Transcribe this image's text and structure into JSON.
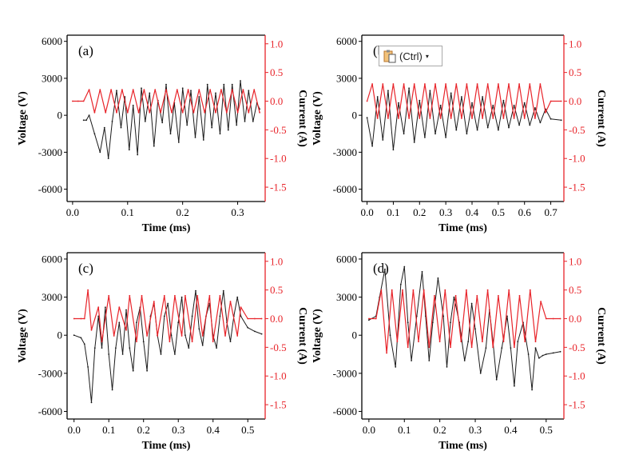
{
  "colors": {
    "voltage": "#1a1a1a",
    "current": "#e8242a",
    "axis_right": "#e8242a",
    "axis_left": "#000000"
  },
  "paste_options": {
    "label": "(Ctrl)",
    "icon": "clipboard-icon",
    "caret": "▾"
  },
  "chart_data": [
    {
      "type": "line",
      "panel_label": "(a)",
      "xlabel": "Time (ms)",
      "ylabel_left": "Voltage (V)",
      "ylabel_right": "Current (A)",
      "xlim": [
        -0.01,
        0.35
      ],
      "xticks": [
        0.0,
        0.1,
        0.2,
        0.3
      ],
      "xtick_labels": [
        "0.0",
        "0.1",
        "0.2",
        "0.3"
      ],
      "ylim_left": [
        -7000,
        6500
      ],
      "yticks_left": [
        -6000,
        -3000,
        0,
        3000,
        6000
      ],
      "ytick_labels_left": [
        "-6000",
        "-3000",
        "0",
        "3000",
        "6000"
      ],
      "ylim_right": [
        -1.75,
        1.15
      ],
      "yticks_right": [
        -1.5,
        -1.0,
        -0.5,
        0.0,
        0.5,
        1.0
      ],
      "ytick_labels_right": [
        "-1.5",
        "-1.0",
        "-0.5",
        "0.0",
        "0.5",
        "1.0"
      ],
      "series": [
        {
          "name": "Voltage (V)",
          "axis": "left",
          "x": [
            0.02,
            0.025,
            0.03,
            0.04,
            0.05,
            0.058,
            0.065,
            0.072,
            0.08,
            0.088,
            0.095,
            0.103,
            0.11,
            0.118,
            0.125,
            0.132,
            0.14,
            0.148,
            0.155,
            0.163,
            0.17,
            0.178,
            0.185,
            0.193,
            0.2,
            0.208,
            0.215,
            0.223,
            0.23,
            0.238,
            0.245,
            0.253,
            0.26,
            0.268,
            0.275,
            0.283,
            0.29,
            0.298,
            0.305,
            0.313,
            0.32,
            0.328,
            0.335,
            0.34
          ],
          "values": [
            -400,
            -400,
            0,
            -1500,
            -3000,
            -1000,
            -3500,
            -500,
            2000,
            -1000,
            1500,
            -2800,
            800,
            -3200,
            2200,
            -500,
            1800,
            -2500,
            1200,
            -600,
            2500,
            -1500,
            1000,
            -2200,
            2200,
            -800,
            2000,
            -1800,
            1500,
            -2000,
            2500,
            -1000,
            1800,
            -1500,
            2500,
            -1200,
            2500,
            -800,
            2800,
            -500,
            2000,
            -500,
            1000,
            500
          ]
        },
        {
          "name": "Current (A)",
          "axis": "right",
          "x": [
            0.0,
            0.01,
            0.02,
            0.03,
            0.04,
            0.05,
            0.06,
            0.07,
            0.08,
            0.09,
            0.1,
            0.11,
            0.12,
            0.13,
            0.14,
            0.15,
            0.16,
            0.17,
            0.18,
            0.19,
            0.2,
            0.21,
            0.22,
            0.23,
            0.24,
            0.25,
            0.26,
            0.27,
            0.28,
            0.29,
            0.3,
            0.31,
            0.32,
            0.33,
            0.34
          ],
          "values": [
            0.0,
            0.0,
            0.0,
            0.2,
            -0.2,
            0.2,
            -0.2,
            0.2,
            -0.2,
            0.2,
            -0.2,
            0.2,
            -0.2,
            0.2,
            -0.2,
            0.2,
            -0.2,
            0.2,
            -0.2,
            0.2,
            -0.2,
            0.2,
            -0.2,
            0.2,
            -0.2,
            0.2,
            -0.2,
            0.2,
            -0.2,
            0.2,
            -0.2,
            0.2,
            -0.2,
            0.2,
            -0.2
          ]
        }
      ]
    },
    {
      "type": "line",
      "panel_label": "(b)",
      "xlabel": "Time (ms)",
      "ylabel_left": "Voltage (V)",
      "ylabel_right": "Current (A)",
      "xlim": [
        -0.02,
        0.75
      ],
      "xticks": [
        0.0,
        0.1,
        0.2,
        0.3,
        0.4,
        0.5,
        0.6,
        0.7
      ],
      "xtick_labels": [
        "0.0",
        "0.1",
        "0.2",
        "0.3",
        "0.4",
        "0.5",
        "0.6",
        "0.7"
      ],
      "ylim_left": [
        -7000,
        6500
      ],
      "yticks_left": [
        -6000,
        -3000,
        0,
        3000,
        6000
      ],
      "ytick_labels_left": [
        "-6000",
        "-3000",
        "0",
        "3000",
        "6000"
      ],
      "ylim_right": [
        -1.75,
        1.15
      ],
      "yticks_right": [
        -1.5,
        -1.0,
        -0.5,
        0.0,
        0.5,
        1.0
      ],
      "ytick_labels_right": [
        "-1.5",
        "-1.0",
        "-0.5",
        "0.0",
        "0.5",
        "1.0"
      ],
      "series": [
        {
          "name": "Voltage (V)",
          "axis": "left",
          "x": [
            0.0,
            0.02,
            0.04,
            0.06,
            0.08,
            0.1,
            0.12,
            0.14,
            0.16,
            0.18,
            0.2,
            0.22,
            0.24,
            0.26,
            0.28,
            0.3,
            0.32,
            0.34,
            0.36,
            0.38,
            0.4,
            0.42,
            0.44,
            0.46,
            0.48,
            0.5,
            0.52,
            0.54,
            0.56,
            0.58,
            0.6,
            0.62,
            0.64,
            0.66,
            0.68,
            0.7,
            0.74
          ],
          "values": [
            -200,
            -2500,
            1500,
            -2000,
            2000,
            -2800,
            1000,
            -1500,
            2200,
            -2200,
            1200,
            -1800,
            2000,
            -1500,
            800,
            -1800,
            1800,
            -1200,
            1500,
            -1500,
            1000,
            -1200,
            1500,
            -1000,
            800,
            -1200,
            1200,
            -1000,
            800,
            -800,
            1000,
            -800,
            600,
            -600,
            500,
            -300,
            -400
          ]
        },
        {
          "name": "Current (A)",
          "axis": "right",
          "x": [
            0.0,
            0.02,
            0.04,
            0.06,
            0.08,
            0.1,
            0.12,
            0.14,
            0.16,
            0.18,
            0.2,
            0.22,
            0.24,
            0.26,
            0.28,
            0.3,
            0.32,
            0.34,
            0.36,
            0.38,
            0.4,
            0.42,
            0.44,
            0.46,
            0.48,
            0.5,
            0.52,
            0.54,
            0.56,
            0.58,
            0.6,
            0.62,
            0.64,
            0.66,
            0.68,
            0.7,
            0.74
          ],
          "values": [
            0.0,
            0.3,
            -0.3,
            0.3,
            -0.3,
            0.3,
            -0.3,
            0.3,
            -0.3,
            0.3,
            -0.3,
            0.3,
            -0.3,
            0.3,
            -0.3,
            0.3,
            -0.3,
            0.3,
            -0.3,
            0.3,
            -0.3,
            0.3,
            -0.3,
            0.3,
            -0.3,
            0.3,
            -0.3,
            0.3,
            -0.3,
            0.3,
            -0.3,
            0.3,
            -0.3,
            0.3,
            -0.2,
            0.0,
            0.0
          ]
        }
      ]
    },
    {
      "type": "line",
      "panel_label": "(c)",
      "xlabel": "Time (ms)",
      "ylabel_left": "Voltage (V)",
      "ylabel_right": "Current (A)",
      "xlim": [
        -0.02,
        0.55
      ],
      "xticks": [
        0.0,
        0.1,
        0.2,
        0.3,
        0.4,
        0.5
      ],
      "xtick_labels": [
        "0.0",
        "0.1",
        "0.2",
        "0.3",
        "0.4",
        "0.5"
      ],
      "ylim_left": [
        -6600,
        6500
      ],
      "yticks_left": [
        -6000,
        -3000,
        0,
        3000,
        6000
      ],
      "ytick_labels_left": [
        "-6000",
        "-3000",
        "0",
        "3000",
        "6000"
      ],
      "ylim_right": [
        -1.75,
        1.15
      ],
      "yticks_right": [
        -1.5,
        -1.0,
        -0.5,
        0.0,
        0.5,
        1.0
      ],
      "ytick_labels_right": [
        "-1.5",
        "-1.0",
        "-0.5",
        "0.0",
        "0.5",
        "1.0"
      ],
      "series": [
        {
          "name": "Voltage (V)",
          "axis": "left",
          "x": [
            0.0,
            0.02,
            0.03,
            0.04,
            0.05,
            0.06,
            0.07,
            0.08,
            0.09,
            0.1,
            0.11,
            0.12,
            0.13,
            0.14,
            0.15,
            0.16,
            0.17,
            0.18,
            0.19,
            0.2,
            0.21,
            0.22,
            0.23,
            0.24,
            0.25,
            0.26,
            0.27,
            0.28,
            0.29,
            0.3,
            0.31,
            0.32,
            0.33,
            0.34,
            0.35,
            0.36,
            0.37,
            0.38,
            0.39,
            0.4,
            0.41,
            0.42,
            0.43,
            0.44,
            0.45,
            0.46,
            0.47,
            0.48,
            0.5,
            0.52,
            0.54
          ],
          "values": [
            0,
            -200,
            -700,
            -2500,
            -5300,
            -1000,
            1500,
            -1000,
            2200,
            -1500,
            -4300,
            -1000,
            1000,
            -1500,
            2000,
            -1000,
            -2800,
            1000,
            2200,
            -500,
            -2800,
            1500,
            2500,
            0,
            -1500,
            1500,
            2500,
            0,
            -1500,
            1000,
            3000,
            0,
            -1000,
            1500,
            3500,
            500,
            -800,
            1500,
            2500,
            0,
            -1000,
            1500,
            3500,
            1000,
            -500,
            1500,
            3000,
            1500,
            600,
            300,
            100
          ]
        },
        {
          "name": "Current (A)",
          "axis": "right",
          "x": [
            0.0,
            0.02,
            0.03,
            0.04,
            0.05,
            0.07,
            0.08,
            0.1,
            0.115,
            0.13,
            0.15,
            0.16,
            0.18,
            0.195,
            0.21,
            0.23,
            0.24,
            0.26,
            0.275,
            0.29,
            0.31,
            0.32,
            0.34,
            0.355,
            0.37,
            0.39,
            0.4,
            0.42,
            0.435,
            0.45,
            0.47,
            0.48,
            0.5,
            0.52,
            0.54
          ],
          "values": [
            0.0,
            0.0,
            0.0,
            0.5,
            -0.2,
            0.2,
            -0.4,
            0.4,
            -0.3,
            0.2,
            -0.2,
            0.4,
            -0.4,
            0.4,
            -0.3,
            0.3,
            -0.3,
            0.4,
            -0.4,
            0.4,
            -0.3,
            0.4,
            -0.4,
            0.4,
            -0.3,
            0.4,
            -0.4,
            0.4,
            -0.3,
            0.3,
            -0.3,
            0.2,
            0.0,
            0.0,
            0.0
          ]
        }
      ]
    },
    {
      "type": "line",
      "panel_label": "(d)",
      "xlabel": "Time (ms)",
      "ylabel_left": "Voltage (V)",
      "ylabel_right": "Current (A)",
      "xlim": [
        -0.02,
        0.55
      ],
      "xticks": [
        0.0,
        0.1,
        0.2,
        0.3,
        0.4,
        0.5
      ],
      "xtick_labels": [
        "0.0",
        "0.1",
        "0.2",
        "0.3",
        "0.4",
        "0.5"
      ],
      "ylim_left": [
        -6600,
        6500
      ],
      "yticks_left": [
        -6000,
        -3000,
        0,
        3000,
        6000
      ],
      "ytick_labels_left": [
        "-6000",
        "-3000",
        "0",
        "3000",
        "6000"
      ],
      "ylim_right": [
        -1.75,
        1.15
      ],
      "yticks_right": [
        -1.5,
        -1.0,
        -0.5,
        0.0,
        0.5,
        1.0
      ],
      "ytick_labels_right": [
        "-1.5",
        "-1.0",
        "-0.5",
        "0.0",
        "0.5",
        "1.0"
      ],
      "series": [
        {
          "name": "Voltage (V)",
          "axis": "left",
          "x": [
            0.0,
            0.02,
            0.03,
            0.045,
            0.06,
            0.075,
            0.09,
            0.1,
            0.11,
            0.12,
            0.135,
            0.15,
            0.16,
            0.17,
            0.18,
            0.195,
            0.21,
            0.22,
            0.23,
            0.24,
            0.255,
            0.27,
            0.28,
            0.29,
            0.3,
            0.315,
            0.33,
            0.34,
            0.35,
            0.36,
            0.375,
            0.39,
            0.4,
            0.41,
            0.42,
            0.435,
            0.45,
            0.46,
            0.47,
            0.48,
            0.49,
            0.5,
            0.52,
            0.54
          ],
          "values": [
            1200,
            1500,
            3000,
            5200,
            0,
            -2500,
            4000,
            5400,
            1000,
            -2000,
            1500,
            5000,
            1500,
            -2000,
            1000,
            4500,
            1500,
            -2500,
            1000,
            3000,
            1000,
            -2000,
            -500,
            2500,
            500,
            -3000,
            -1000,
            2000,
            -500,
            -3500,
            -1000,
            1500,
            -1000,
            -4000,
            -500,
            1000,
            -1500,
            -4300,
            -1000,
            -1800,
            -1600,
            -1500,
            -1400,
            -1300
          ]
        },
        {
          "name": "Current (A)",
          "axis": "right",
          "x": [
            0.0,
            0.02,
            0.035,
            0.05,
            0.065,
            0.08,
            0.095,
            0.11,
            0.125,
            0.14,
            0.155,
            0.17,
            0.185,
            0.2,
            0.215,
            0.23,
            0.245,
            0.26,
            0.275,
            0.29,
            0.305,
            0.32,
            0.335,
            0.35,
            0.365,
            0.38,
            0.395,
            0.41,
            0.425,
            0.44,
            0.455,
            0.47,
            0.485,
            0.5,
            0.52,
            0.54
          ],
          "values": [
            0.0,
            0.0,
            0.5,
            -0.6,
            0.5,
            -0.4,
            0.5,
            -0.5,
            0.5,
            -0.4,
            0.5,
            -0.5,
            0.4,
            -0.4,
            0.5,
            -0.5,
            0.4,
            -0.4,
            0.5,
            -0.5,
            0.4,
            -0.4,
            0.5,
            -0.5,
            0.4,
            -0.4,
            0.5,
            -0.5,
            0.4,
            -0.4,
            0.5,
            -0.4,
            0.3,
            0.0,
            0.0,
            0.0
          ]
        }
      ]
    }
  ]
}
